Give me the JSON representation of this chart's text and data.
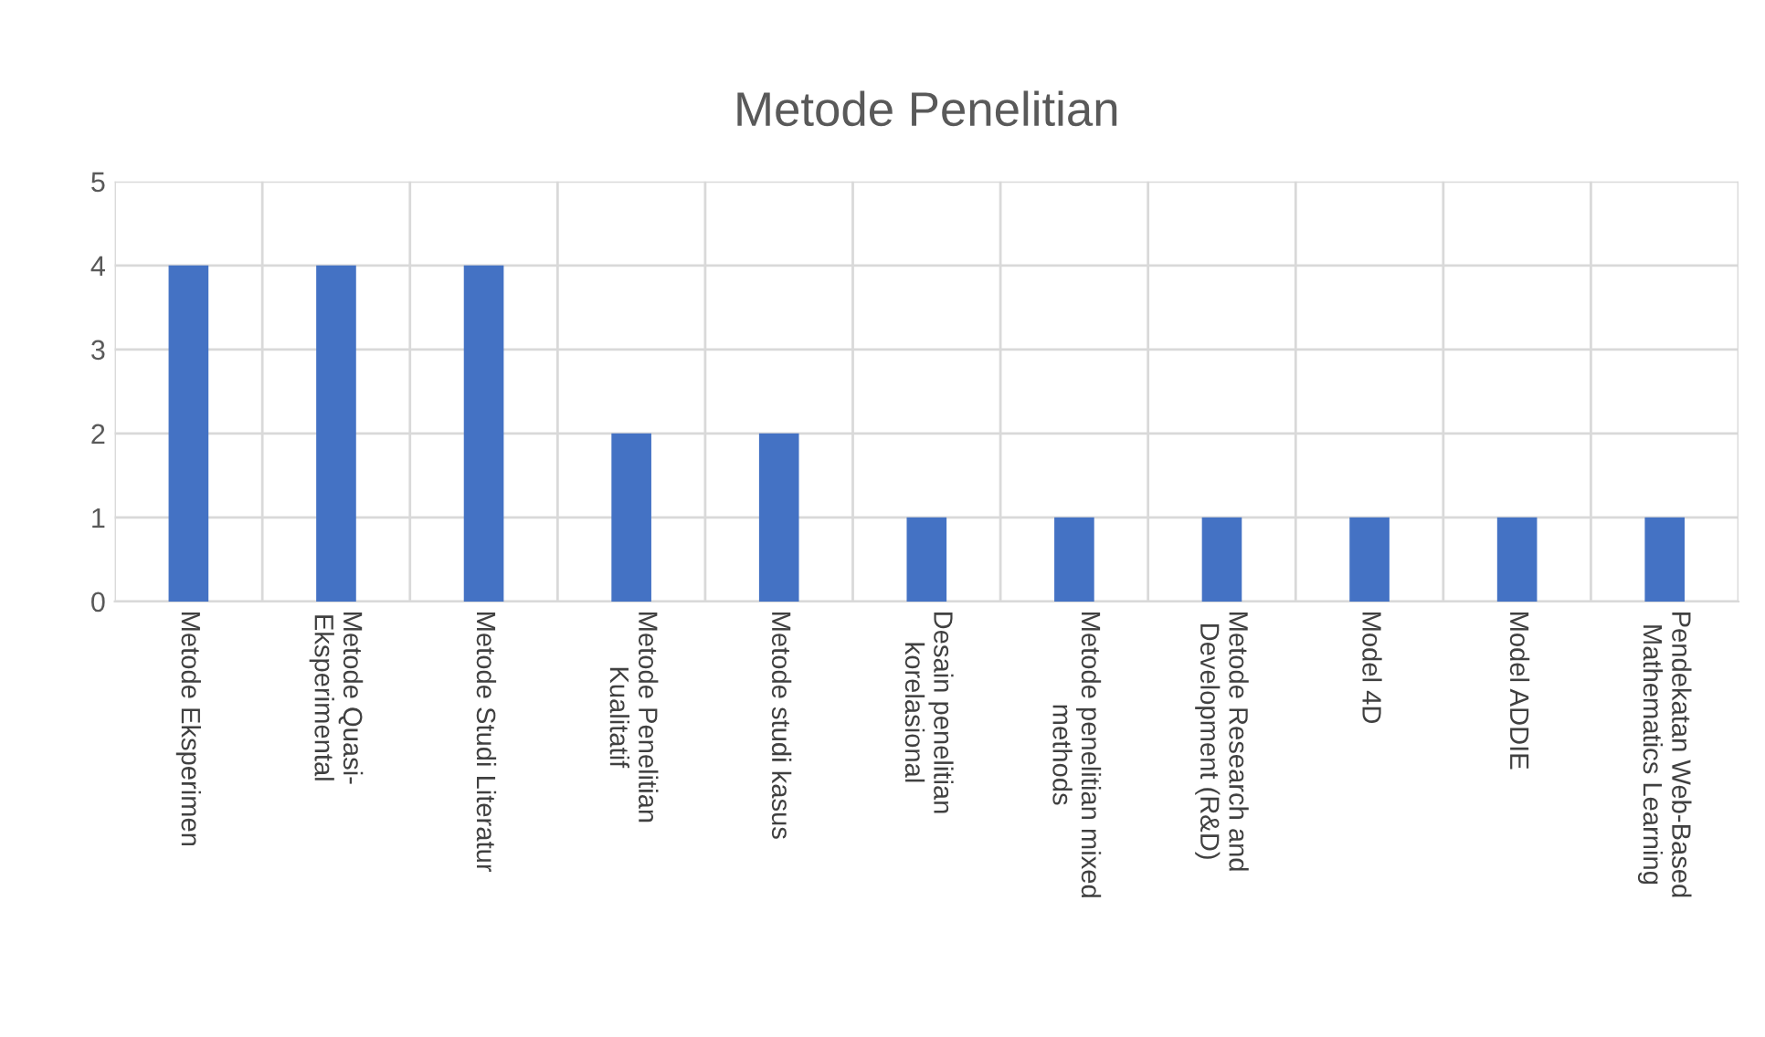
{
  "chart_data": {
    "type": "bar",
    "title": "Metode Penelitian",
    "categories": [
      "Metode Eksperimen",
      "Metode Quasi-\nEksperimental",
      "Metode Studi Literatur",
      "Metode Penelitian\nKualitatif",
      "Metode studi kasus",
      "Desain penelitian\nkorelasional",
      "Metode penelitian mixed\nmethods",
      "Metode Research and\nDevelopment (R&D)",
      "Model 4D",
      "Model ADDIE",
      "Pendekatan Web-Based\nMathematics Learning"
    ],
    "values": [
      4,
      4,
      4,
      2,
      2,
      1,
      1,
      1,
      1,
      1,
      1
    ],
    "color": "#4472c4",
    "ylim": [
      0,
      5
    ],
    "yticks": [
      0,
      1,
      2,
      3,
      4,
      5
    ],
    "grid": true
  }
}
